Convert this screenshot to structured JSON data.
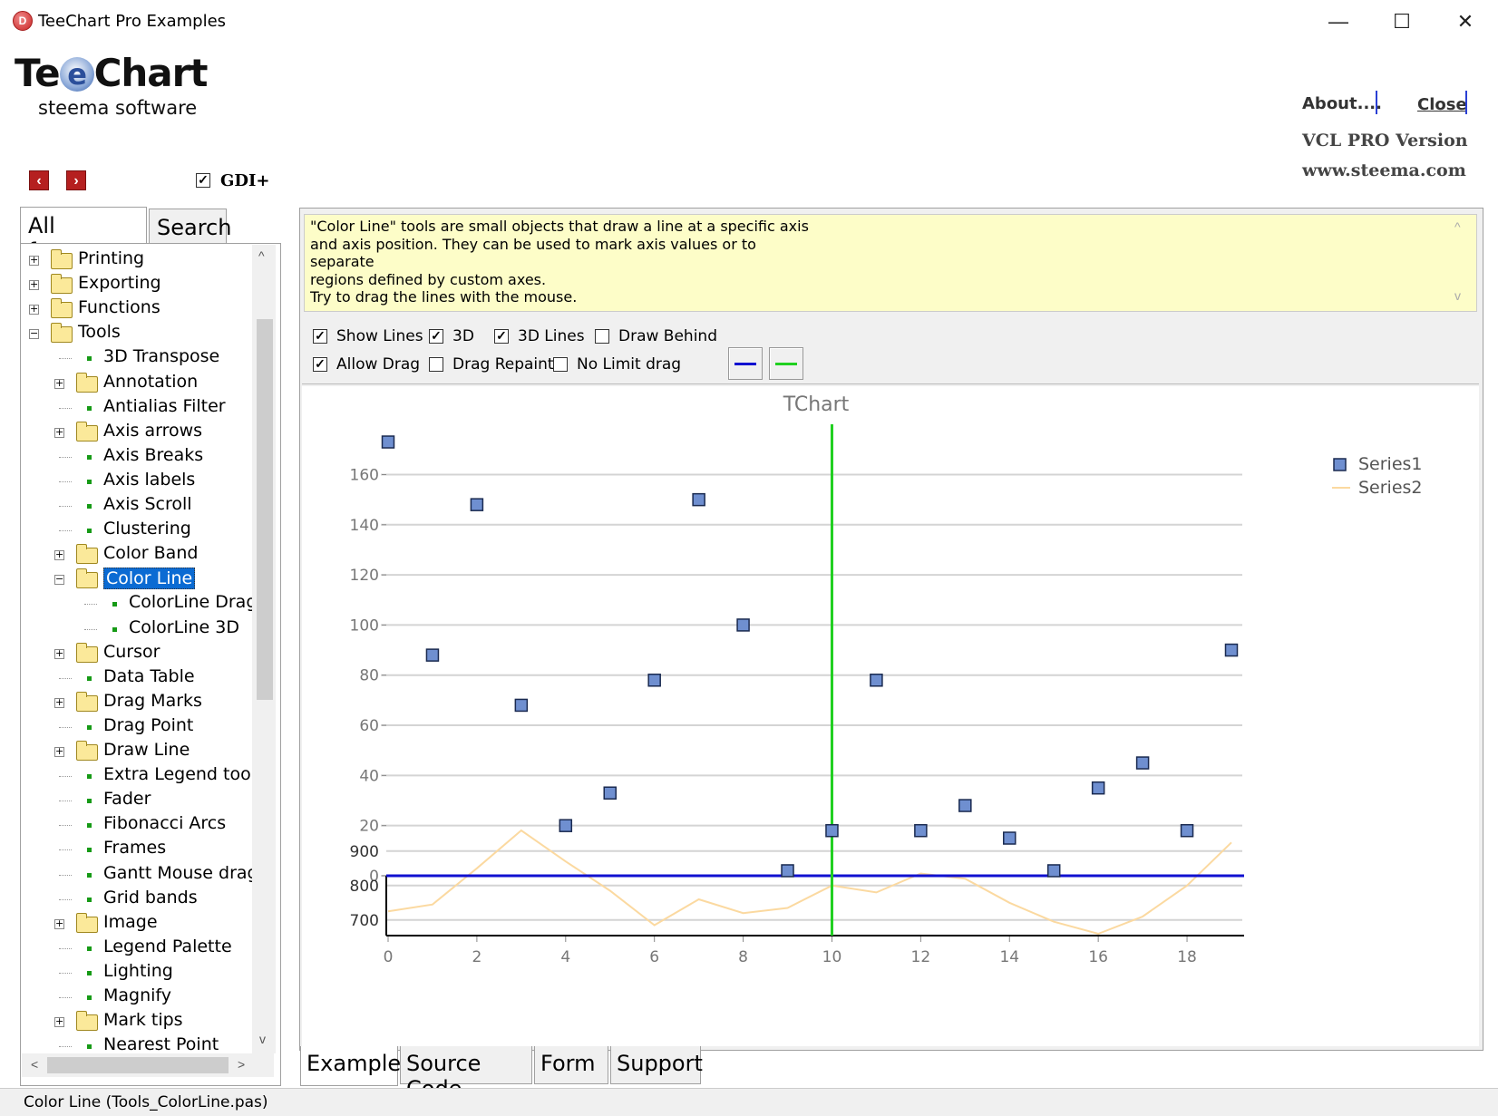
{
  "window": {
    "title": "TeeChart Pro Examples",
    "icon_letter": "D",
    "minimize": "—",
    "maximize": "☐",
    "close": "✕"
  },
  "logo": {
    "before": "Te",
    "e": "e",
    "after": "Chart",
    "subtitle": "steema software"
  },
  "header": {
    "about_label": "About....",
    "close_label": "Close",
    "version": "VCL PRO Version",
    "website": "www.steema.com"
  },
  "nav": {
    "prev": "‹",
    "next": "›"
  },
  "gdi": {
    "label": "GDI+",
    "checked": true
  },
  "left_tabs": {
    "all_features": "All features",
    "search": "Search"
  },
  "tree": {
    "items": [
      {
        "label": "Printing",
        "level": 0,
        "type": "folder",
        "expander": "+"
      },
      {
        "label": "Exporting",
        "level": 0,
        "type": "folder",
        "expander": "+"
      },
      {
        "label": "Functions",
        "level": 0,
        "type": "folder",
        "expander": "+"
      },
      {
        "label": "Tools",
        "level": 0,
        "type": "open-folder",
        "expander": "−"
      },
      {
        "label": "3D Transpose",
        "level": 1,
        "type": "leaf"
      },
      {
        "label": "Annotation",
        "level": 1,
        "type": "folder",
        "expander": "+"
      },
      {
        "label": "Antialias Filter",
        "level": 1,
        "type": "leaf"
      },
      {
        "label": "Axis arrows",
        "level": 1,
        "type": "folder",
        "expander": "+"
      },
      {
        "label": "Axis Breaks",
        "level": 1,
        "type": "leaf"
      },
      {
        "label": "Axis labels",
        "level": 1,
        "type": "leaf"
      },
      {
        "label": "Axis Scroll",
        "level": 1,
        "type": "leaf"
      },
      {
        "label": "Clustering",
        "level": 1,
        "type": "leaf"
      },
      {
        "label": "Color Band",
        "level": 1,
        "type": "folder",
        "expander": "+"
      },
      {
        "label": "Color Line",
        "level": 1,
        "type": "open-folder",
        "expander": "−",
        "selected": true
      },
      {
        "label": "ColorLine Drag r",
        "level": 2,
        "type": "leaf"
      },
      {
        "label": "ColorLine 3D",
        "level": 2,
        "type": "leaf"
      },
      {
        "label": "Cursor",
        "level": 1,
        "type": "folder",
        "expander": "+"
      },
      {
        "label": "Data Table",
        "level": 1,
        "type": "leaf"
      },
      {
        "label": "Drag Marks",
        "level": 1,
        "type": "folder",
        "expander": "+"
      },
      {
        "label": "Drag Point",
        "level": 1,
        "type": "leaf"
      },
      {
        "label": "Draw Line",
        "level": 1,
        "type": "folder",
        "expander": "+"
      },
      {
        "label": "Extra Legend tool",
        "level": 1,
        "type": "leaf"
      },
      {
        "label": "Fader",
        "level": 1,
        "type": "leaf"
      },
      {
        "label": "Fibonacci Arcs",
        "level": 1,
        "type": "leaf"
      },
      {
        "label": "Frames",
        "level": 1,
        "type": "leaf"
      },
      {
        "label": "Gantt Mouse dragg",
        "level": 1,
        "type": "leaf"
      },
      {
        "label": "Grid bands",
        "level": 1,
        "type": "leaf"
      },
      {
        "label": "Image",
        "level": 1,
        "type": "folder",
        "expander": "+"
      },
      {
        "label": "Legend Palette",
        "level": 1,
        "type": "leaf"
      },
      {
        "label": "Lighting",
        "level": 1,
        "type": "leaf"
      },
      {
        "label": "Magnify",
        "level": 1,
        "type": "leaf"
      },
      {
        "label": "Mark tips",
        "level": 1,
        "type": "folder",
        "expander": "+"
      },
      {
        "label": "Nearest Point",
        "level": 1,
        "type": "leaf"
      }
    ],
    "scroll_up": "^",
    "scroll_down": "v",
    "scroll_left": "<",
    "scroll_right": ">"
  },
  "description": {
    "lines": [
      "\"Color Line\" tools are small objects that draw a line at a specific axis",
      "and axis position. They can be used to mark axis values or to separate",
      "regions defined by custom axes.",
      "Try to drag the lines with the mouse."
    ],
    "scroll_up": "^",
    "scroll_down": "v"
  },
  "options": {
    "show_lines": {
      "label": "Show Lines",
      "checked": true
    },
    "three_d": {
      "label": "3D",
      "checked": true
    },
    "three_d_lines": {
      "label": "3D Lines",
      "checked": true
    },
    "draw_behind": {
      "label": "Draw Behind",
      "checked": false
    },
    "allow_drag": {
      "label": "Allow Drag",
      "checked": true
    },
    "drag_repaint": {
      "label": "Drag Repaint",
      "checked": false
    },
    "no_limit_drag": {
      "label": "No Limit drag",
      "checked": false
    },
    "line1_color": "#1010d0",
    "line2_color": "#20d020"
  },
  "chart_data": {
    "type": "scatter",
    "title": "TChart",
    "x_ticks": [
      "0",
      "2",
      "4",
      "6",
      "8",
      "10",
      "12",
      "14",
      "16",
      "18"
    ],
    "top_axis": {
      "ylim": [
        0,
        175
      ],
      "ticks": [
        "0",
        "20",
        "40",
        "60",
        "80",
        "100",
        "120",
        "140",
        "160"
      ]
    },
    "bottom_axis": {
      "ylim": [
        660,
        960
      ],
      "ticks": [
        "700",
        "800",
        "900"
      ]
    },
    "series": [
      {
        "name": "Series1",
        "kind": "points",
        "color": "#6f8fd0",
        "axis": "top",
        "x": [
          0,
          1,
          2,
          3,
          4,
          5,
          6,
          7,
          8,
          9,
          10,
          11,
          12,
          13,
          14,
          15,
          16,
          17,
          18,
          19
        ],
        "y": [
          173,
          88,
          148,
          68,
          20,
          33,
          78,
          150,
          100,
          2,
          18,
          78,
          18,
          28,
          15,
          2,
          35,
          45,
          18,
          90
        ]
      },
      {
        "name": "Series2",
        "kind": "line",
        "color": "#fbd9a0",
        "axis": "bottom",
        "x": [
          0,
          1,
          2,
          3,
          4,
          5,
          6,
          7,
          8,
          9,
          10,
          11,
          12,
          13,
          14,
          15,
          16,
          17,
          18,
          19
        ],
        "y": [
          725,
          745,
          850,
          960,
          870,
          785,
          685,
          760,
          720,
          735,
          800,
          780,
          835,
          820,
          750,
          695,
          660,
          710,
          800,
          925
        ]
      }
    ],
    "color_lines": [
      {
        "axis": "horizontal",
        "value": 0,
        "color": "#1010d0"
      },
      {
        "axis": "vertical",
        "value": 10,
        "color": "#20d020"
      }
    ],
    "legend_position": "right",
    "grid": true
  },
  "bottom_tabs": {
    "example": "Example",
    "source": "Source Code",
    "form": "Form",
    "support": "Support"
  },
  "status": {
    "text": "Color Line (Tools_ColorLine.pas)"
  }
}
